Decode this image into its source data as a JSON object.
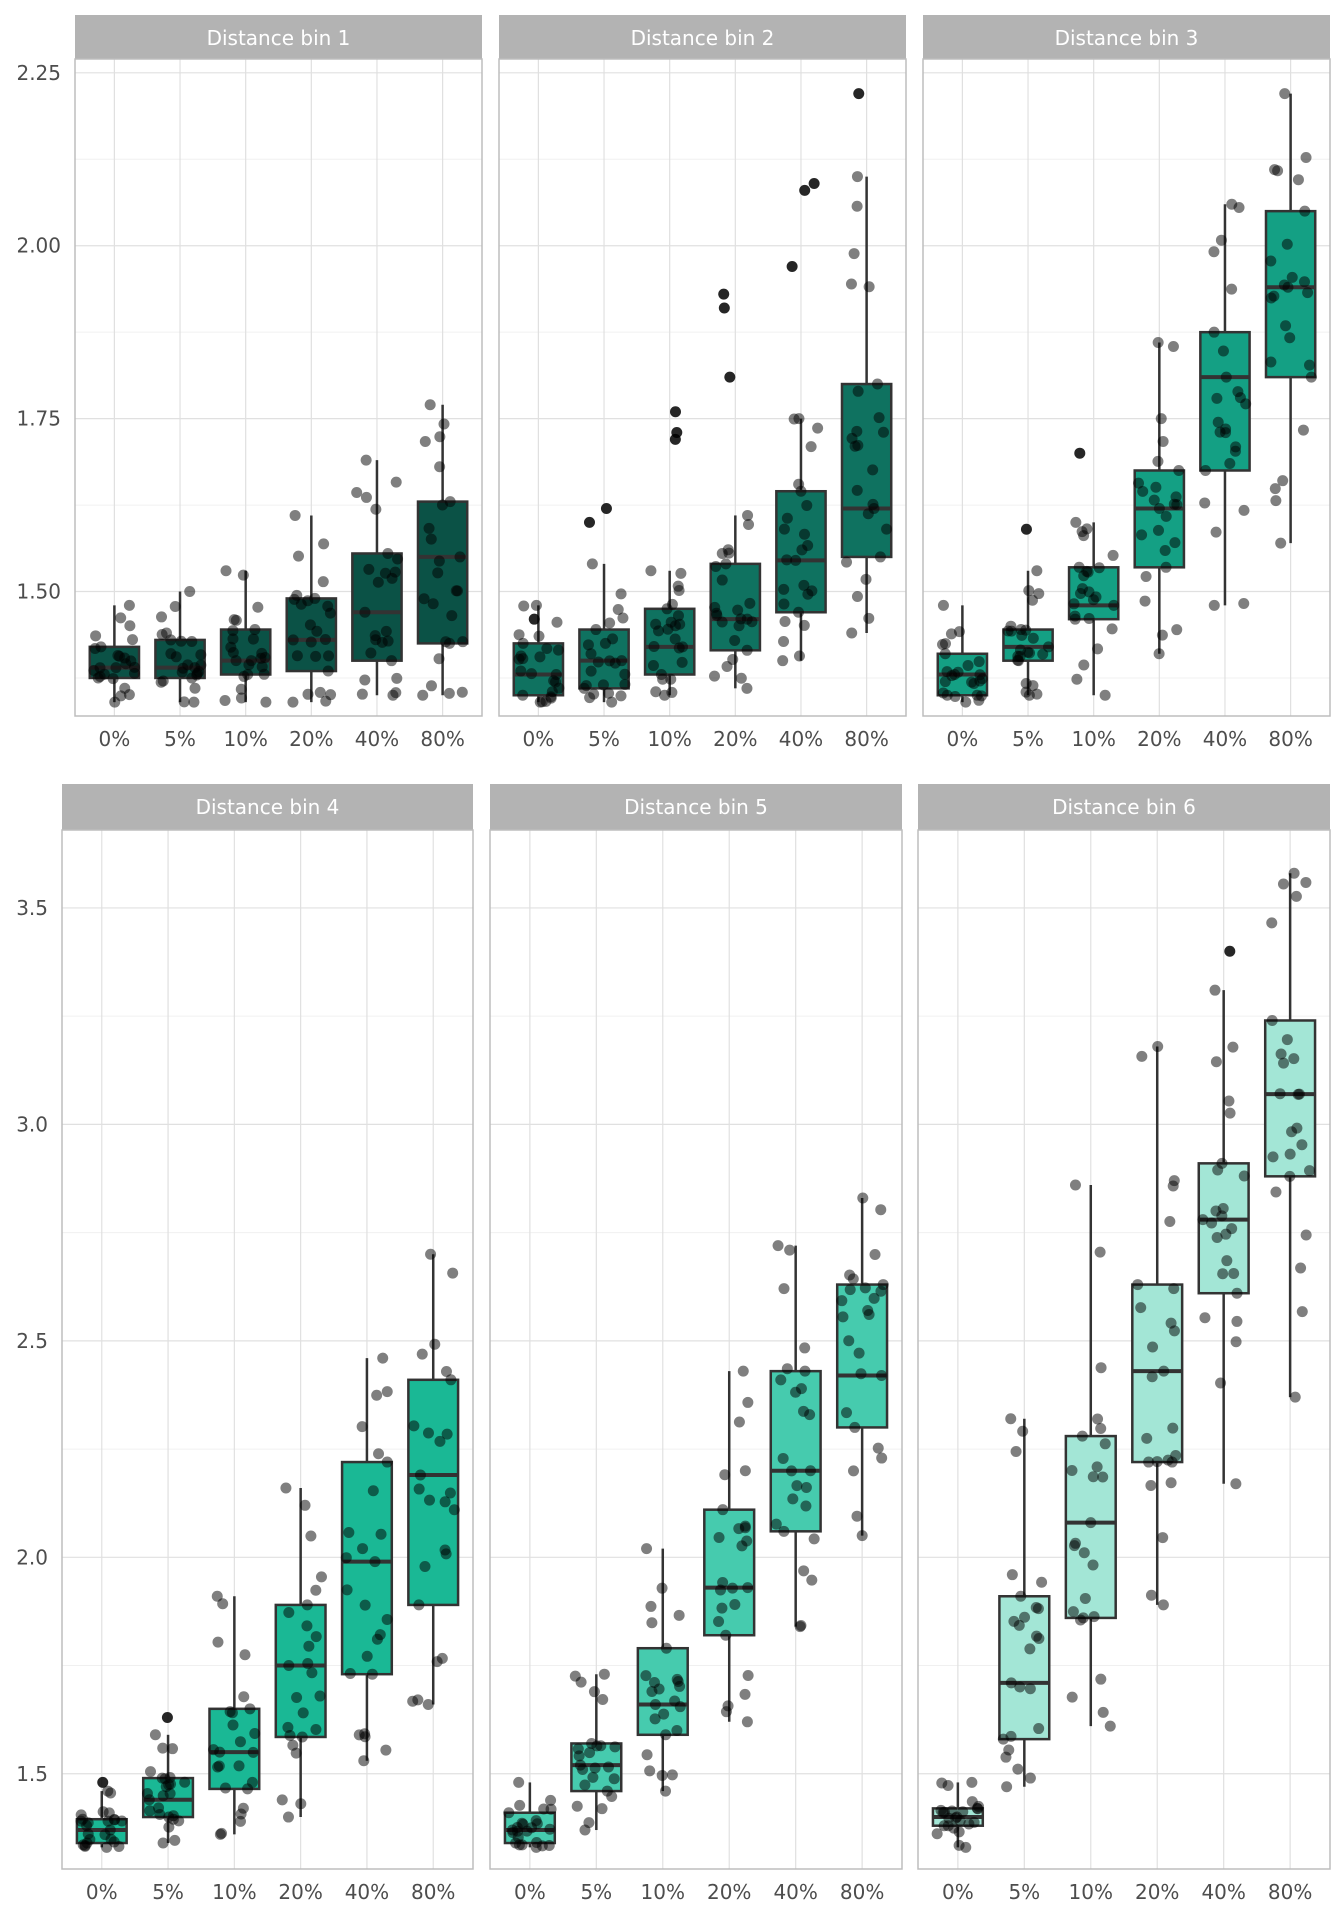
{
  "chart_data": [
    {
      "type": "box",
      "panel_title": "Distance bin 1",
      "categories": [
        "0%",
        "5%",
        "10%",
        "20%",
        "40%",
        "80%"
      ],
      "box_color": "#0b5246",
      "ylim": [
        1.32,
        2.27
      ],
      "y_ticks": [
        1.5,
        1.75,
        2.0,
        2.25
      ],
      "y_tick_labels": [
        "1.50",
        "1.75",
        "2.00",
        "2.25"
      ],
      "boxes": [
        {
          "q1": 1.375,
          "median": 1.39,
          "q3": 1.42,
          "whisker_low": 1.34,
          "whisker_high": 1.48
        },
        {
          "q1": 1.375,
          "median": 1.39,
          "q3": 1.43,
          "whisker_low": 1.34,
          "whisker_high": 1.5
        },
        {
          "q1": 1.38,
          "median": 1.4,
          "q3": 1.445,
          "whisker_low": 1.34,
          "whisker_high": 1.53
        },
        {
          "q1": 1.385,
          "median": 1.43,
          "q3": 1.49,
          "whisker_low": 1.34,
          "whisker_high": 1.61
        },
        {
          "q1": 1.4,
          "median": 1.47,
          "q3": 1.555,
          "whisker_low": 1.35,
          "whisker_high": 1.69
        },
        {
          "q1": 1.425,
          "median": 1.55,
          "q3": 1.63,
          "whisker_low": 1.35,
          "whisker_high": 1.77
        }
      ],
      "outliers": []
    },
    {
      "type": "box",
      "panel_title": "Distance bin 2",
      "categories": [
        "0%",
        "5%",
        "10%",
        "20%",
        "40%",
        "80%"
      ],
      "box_color": "#0f7260",
      "ylim": [
        1.32,
        2.27
      ],
      "y_ticks": [
        1.5,
        1.75,
        2.0,
        2.25
      ],
      "y_tick_labels": [
        "1.50",
        "1.75",
        "2.00",
        "2.25"
      ],
      "boxes": [
        {
          "q1": 1.35,
          "median": 1.38,
          "q3": 1.425,
          "whisker_low": 1.34,
          "whisker_high": 1.48
        },
        {
          "q1": 1.36,
          "median": 1.4,
          "q3": 1.445,
          "whisker_low": 1.34,
          "whisker_high": 1.54
        },
        {
          "q1": 1.38,
          "median": 1.42,
          "q3": 1.475,
          "whisker_low": 1.35,
          "whisker_high": 1.53
        },
        {
          "q1": 1.415,
          "median": 1.46,
          "q3": 1.54,
          "whisker_low": 1.36,
          "whisker_high": 1.61
        },
        {
          "q1": 1.47,
          "median": 1.545,
          "q3": 1.645,
          "whisker_low": 1.4,
          "whisker_high": 1.75
        },
        {
          "q1": 1.55,
          "median": 1.62,
          "q3": 1.8,
          "whisker_low": 1.44,
          "whisker_high": 2.1
        }
      ],
      "outliers": [
        {
          "cat": 0,
          "y": 1.46
        },
        {
          "cat": 1,
          "y": 1.62
        },
        {
          "cat": 1,
          "y": 1.6
        },
        {
          "cat": 2,
          "y": 1.76
        },
        {
          "cat": 2,
          "y": 1.73
        },
        {
          "cat": 2,
          "y": 1.72
        },
        {
          "cat": 3,
          "y": 1.93
        },
        {
          "cat": 3,
          "y": 1.91
        },
        {
          "cat": 3,
          "y": 1.81
        },
        {
          "cat": 4,
          "y": 2.09
        },
        {
          "cat": 4,
          "y": 2.08
        },
        {
          "cat": 4,
          "y": 1.97
        },
        {
          "cat": 5,
          "y": 2.22
        }
      ]
    },
    {
      "type": "box",
      "panel_title": "Distance bin 3",
      "categories": [
        "0%",
        "5%",
        "10%",
        "20%",
        "40%",
        "80%"
      ],
      "box_color": "#14a084",
      "ylim": [
        1.32,
        2.27
      ],
      "y_ticks": [
        1.5,
        1.75,
        2.0,
        2.25
      ],
      "y_tick_labels": [
        "1.50",
        "1.75",
        "2.00",
        "2.25"
      ],
      "boxes": [
        {
          "q1": 1.35,
          "median": 1.38,
          "q3": 1.41,
          "whisker_low": 1.34,
          "whisker_high": 1.48
        },
        {
          "q1": 1.4,
          "median": 1.42,
          "q3": 1.445,
          "whisker_low": 1.35,
          "whisker_high": 1.53
        },
        {
          "q1": 1.46,
          "median": 1.48,
          "q3": 1.535,
          "whisker_low": 1.35,
          "whisker_high": 1.6
        },
        {
          "q1": 1.535,
          "median": 1.62,
          "q3": 1.675,
          "whisker_low": 1.41,
          "whisker_high": 1.86
        },
        {
          "q1": 1.675,
          "median": 1.81,
          "q3": 1.875,
          "whisker_low": 1.48,
          "whisker_high": 2.06
        },
        {
          "q1": 1.81,
          "median": 1.94,
          "q3": 2.05,
          "whisker_low": 1.57,
          "whisker_high": 2.22
        }
      ],
      "outliers": [
        {
          "cat": 1,
          "y": 1.59
        },
        {
          "cat": 2,
          "y": 1.7
        }
      ]
    },
    {
      "type": "box",
      "panel_title": "Distance bin 4",
      "categories": [
        "0%",
        "5%",
        "10%",
        "20%",
        "40%",
        "80%"
      ],
      "box_color": "#1ab895",
      "ylim": [
        1.28,
        3.68
      ],
      "y_ticks": [
        1.5,
        2.0,
        2.5,
        3.0,
        3.5
      ],
      "y_tick_labels": [
        "1.5",
        "2.0",
        "2.5",
        "3.0",
        "3.5"
      ],
      "boxes": [
        {
          "q1": 1.34,
          "median": 1.37,
          "q3": 1.395,
          "whisker_low": 1.33,
          "whisker_high": 1.46
        },
        {
          "q1": 1.4,
          "median": 1.44,
          "q3": 1.49,
          "whisker_low": 1.34,
          "whisker_high": 1.59
        },
        {
          "q1": 1.465,
          "median": 1.55,
          "q3": 1.65,
          "whisker_low": 1.36,
          "whisker_high": 1.91
        },
        {
          "q1": 1.585,
          "median": 1.75,
          "q3": 1.89,
          "whisker_low": 1.4,
          "whisker_high": 2.16
        },
        {
          "q1": 1.73,
          "median": 1.99,
          "q3": 2.22,
          "whisker_low": 1.53,
          "whisker_high": 2.46
        },
        {
          "q1": 1.89,
          "median": 2.19,
          "q3": 2.41,
          "whisker_low": 1.66,
          "whisker_high": 2.7
        }
      ],
      "outliers": [
        {
          "cat": 0,
          "y": 1.48
        },
        {
          "cat": 1,
          "y": 1.63
        }
      ]
    },
    {
      "type": "box",
      "panel_title": "Distance bin 5",
      "categories": [
        "0%",
        "5%",
        "10%",
        "20%",
        "40%",
        "80%"
      ],
      "box_color": "#46cbae",
      "ylim": [
        1.28,
        3.68
      ],
      "y_ticks": [
        1.5,
        2.0,
        2.5,
        3.0,
        3.5
      ],
      "y_tick_labels": [
        "1.5",
        "2.0",
        "2.5",
        "3.0",
        "3.5"
      ],
      "boxes": [
        {
          "q1": 1.34,
          "median": 1.37,
          "q3": 1.41,
          "whisker_low": 1.33,
          "whisker_high": 1.48
        },
        {
          "q1": 1.46,
          "median": 1.52,
          "q3": 1.57,
          "whisker_low": 1.37,
          "whisker_high": 1.73
        },
        {
          "q1": 1.59,
          "median": 1.66,
          "q3": 1.79,
          "whisker_low": 1.46,
          "whisker_high": 2.02
        },
        {
          "q1": 1.82,
          "median": 1.93,
          "q3": 2.11,
          "whisker_low": 1.62,
          "whisker_high": 2.43
        },
        {
          "q1": 2.06,
          "median": 2.2,
          "q3": 2.43,
          "whisker_low": 1.84,
          "whisker_high": 2.72
        },
        {
          "q1": 2.3,
          "median": 2.42,
          "q3": 2.63,
          "whisker_low": 2.05,
          "whisker_high": 2.83
        }
      ],
      "outliers": []
    },
    {
      "type": "box",
      "panel_title": "Distance bin 6",
      "categories": [
        "0%",
        "5%",
        "10%",
        "20%",
        "40%",
        "80%"
      ],
      "box_color": "#a3e6d6",
      "ylim": [
        1.28,
        3.68
      ],
      "y_ticks": [
        1.5,
        2.0,
        2.5,
        3.0,
        3.5
      ],
      "y_tick_labels": [
        "1.5",
        "2.0",
        "2.5",
        "3.0",
        "3.5"
      ],
      "boxes": [
        {
          "q1": 1.38,
          "median": 1.4,
          "q3": 1.42,
          "whisker_low": 1.33,
          "whisker_high": 1.48
        },
        {
          "q1": 1.58,
          "median": 1.71,
          "q3": 1.91,
          "whisker_low": 1.47,
          "whisker_high": 2.32
        },
        {
          "q1": 1.86,
          "median": 2.08,
          "q3": 2.28,
          "whisker_low": 1.61,
          "whisker_high": 2.86
        },
        {
          "q1": 2.22,
          "median": 2.43,
          "q3": 2.63,
          "whisker_low": 1.89,
          "whisker_high": 3.18
        },
        {
          "q1": 2.61,
          "median": 2.78,
          "q3": 2.91,
          "whisker_low": 2.17,
          "whisker_high": 3.31
        },
        {
          "q1": 2.88,
          "median": 3.07,
          "q3": 3.24,
          "whisker_low": 2.37,
          "whisker_high": 3.58
        }
      ],
      "outliers": [
        {
          "cat": 4,
          "y": 3.4
        }
      ]
    }
  ]
}
